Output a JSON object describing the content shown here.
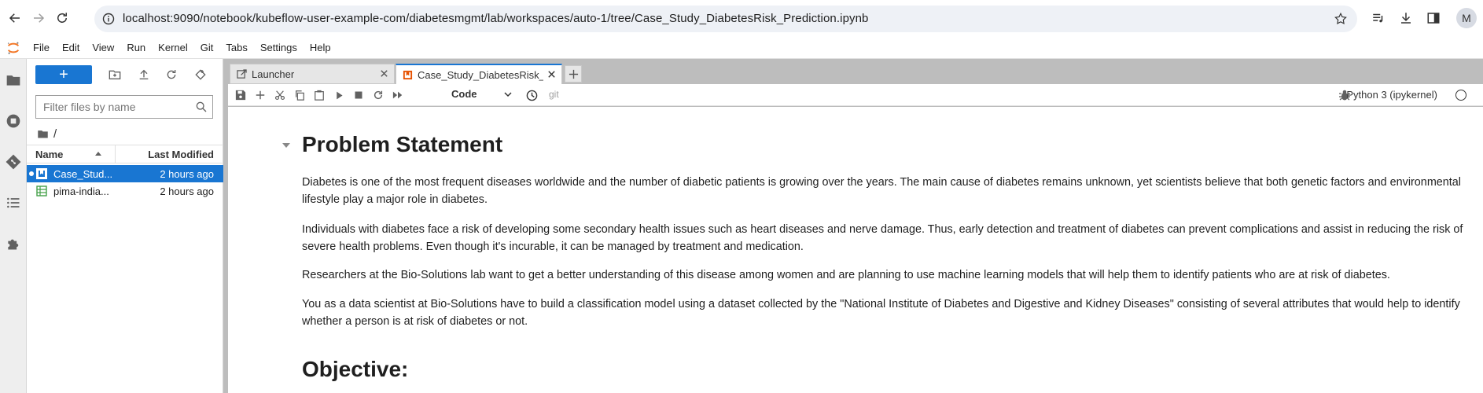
{
  "browser": {
    "url": "localhost:9090/notebook/kubeflow-user-example-com/diabetesmgmt/lab/workspaces/auto-1/tree/Case_Study_DiabetesRisk_Prediction.ipynb",
    "profile_initial": "M"
  },
  "menubar": {
    "items": [
      "File",
      "Edit",
      "View",
      "Run",
      "Kernel",
      "Git",
      "Tabs",
      "Settings",
      "Help"
    ]
  },
  "file_browser": {
    "new_label": "+",
    "search_placeholder": "Filter files by name",
    "breadcrumb": "/",
    "col_name": "Name",
    "col_modified": "Last Modified",
    "files": [
      {
        "name": "Case_Study_DiabetesRisk_Prediction.ipynb",
        "display": "Case_Stud...",
        "modified": "2 hours ago",
        "type": "notebook",
        "selected": true
      },
      {
        "name": "pima-indians-diabetes.csv",
        "display": "pima-india...",
        "modified": "2 hours ago",
        "type": "csv",
        "selected": false
      }
    ]
  },
  "tabs": [
    {
      "label": "Launcher",
      "active": false
    },
    {
      "label": "Case_Study_DiabetesRisk_",
      "active": true
    }
  ],
  "notebook_toolbar": {
    "cell_type": "Code",
    "git_label": "git",
    "kernel_name": "Python 3 (ipykernel)"
  },
  "notebook": {
    "heading_1": "Problem Statement",
    "paragraphs": [
      "Diabetes is one of the most frequent diseases worldwide and the number of diabetic patients is growing over the years. The main cause of diabetes remains unknown, yet scientists believe that both genetic factors and environmental lifestyle play a major role in diabetes.",
      "Individuals with diabetes face a risk of developing some secondary health issues such as heart diseases and nerve damage. Thus, early detection and treatment of diabetes can prevent complications and assist in reducing the risk of severe health problems. Even though it's incurable, it can be managed by treatment and medication.",
      "Researchers at the Bio-Solutions lab want to get a better understanding of this disease among women and are planning to use machine learning models that will help them to identify patients who are at risk of diabetes.",
      "You as a data scientist at Bio-Solutions have to build a classification model using a dataset collected by the \"National Institute of Diabetes and Digestive and Kidney Diseases\" consisting of several attributes that would help to identify whether a person is at risk of diabetes or not."
    ],
    "heading_2": "Objective:"
  },
  "colors": {
    "accent": "#1976d2",
    "notebook_icon": "#e65100",
    "csv_icon": "#43a047"
  }
}
